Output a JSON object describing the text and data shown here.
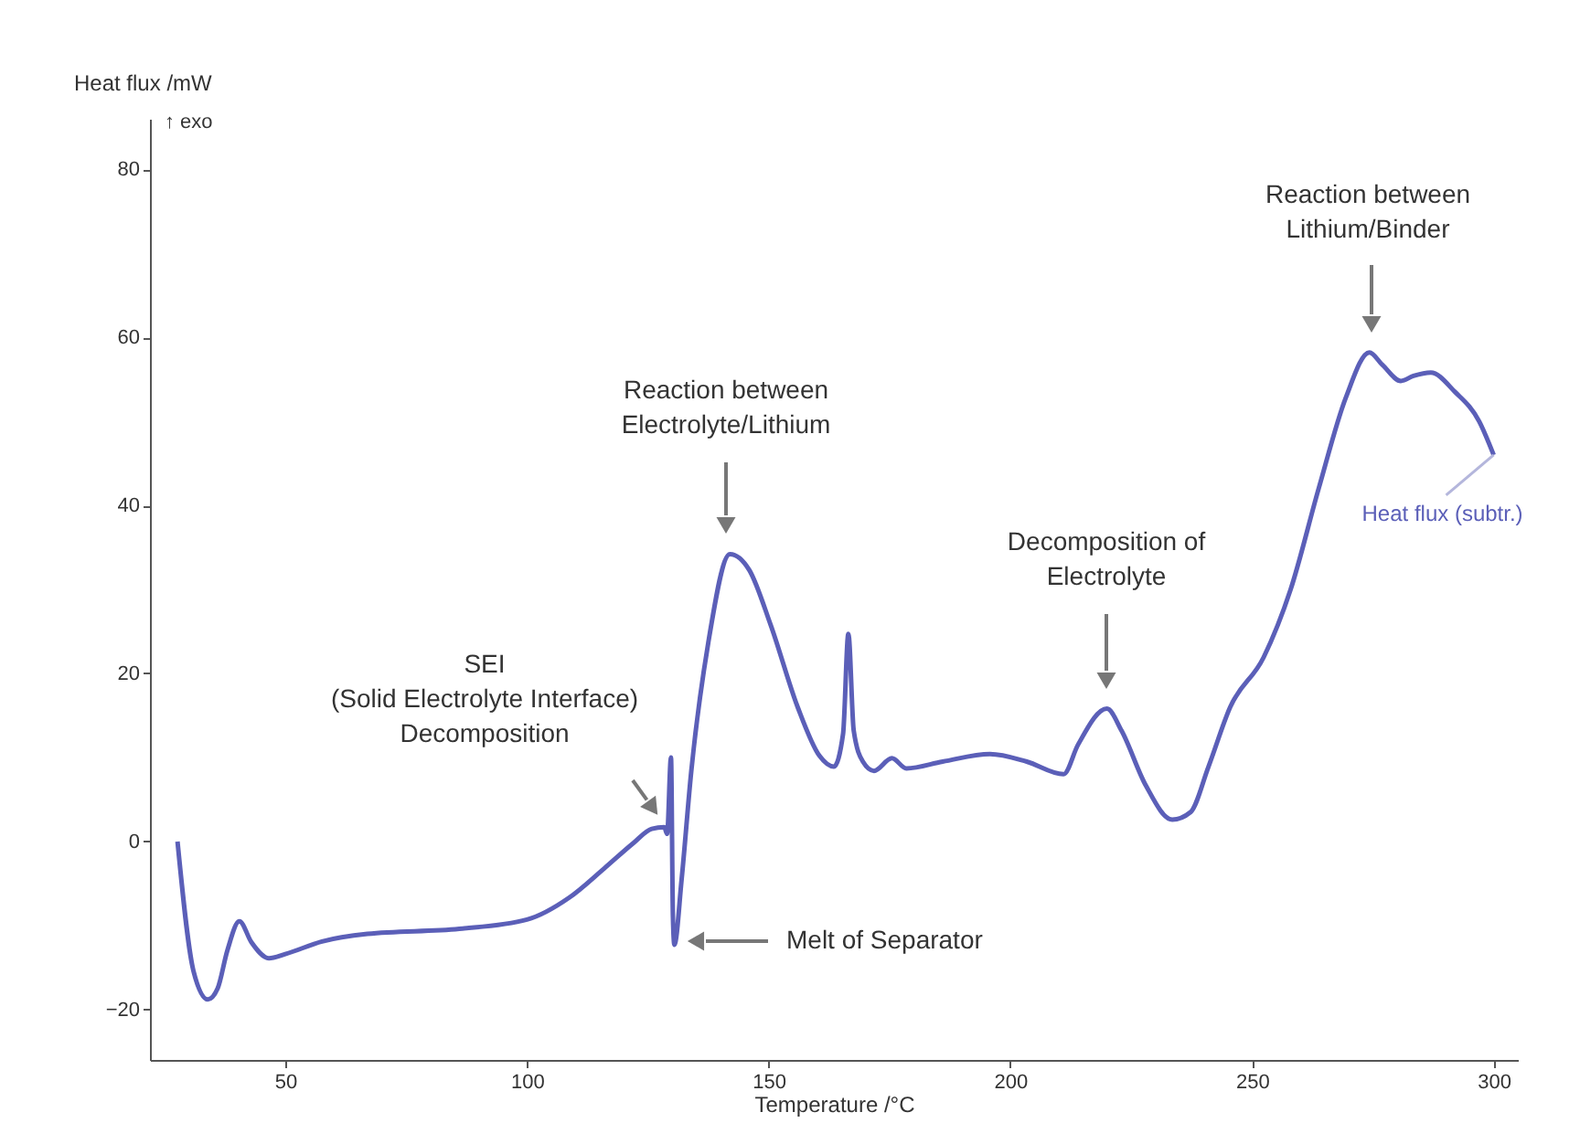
{
  "chart_data": {
    "type": "line",
    "xlabel": "Temperature /°C",
    "ylabel": "Heat flux /mW",
    "x": [
      27.7,
      31,
      34,
      36,
      38,
      40.5,
      43,
      46.6,
      50,
      57.6,
      67,
      86,
      100,
      108.7,
      116,
      122,
      125.8,
      128.4,
      129,
      129.8,
      130.2,
      130.5,
      132,
      134,
      137.5,
      142,
      146,
      150.4,
      156,
      160.5,
      163.5,
      165.4,
      166.5,
      167.6,
      169.5,
      171.8,
      175.5,
      178.5,
      186,
      195.8,
      203.4,
      211,
      214,
      220,
      223,
      228,
      233.5,
      237.3,
      241,
      245.5,
      252.4,
      258,
      263.8,
      269.4,
      274.3,
      277,
      280.8,
      283.4,
      287,
      292,
      297,
      300
    ],
    "series": [
      {
        "name": "Heat flux (subtr.)",
        "color": "#5b5fb8",
        "values": [
          0,
          -15.4,
          -18.8,
          -17.5,
          -13,
          -9.5,
          -12,
          -13.9,
          -13.4,
          -11.9,
          -11,
          -10.4,
          -9.3,
          -6.7,
          -3.2,
          -0.2,
          1.5,
          1.7,
          0.9,
          10,
          -9,
          -12.3,
          -4.5,
          8.4,
          23.6,
          34.2,
          32.3,
          25.8,
          16,
          10.2,
          8.9,
          12.8,
          24.7,
          13.2,
          9.5,
          8.4,
          9.9,
          8.7,
          9.5,
          10.4,
          9.5,
          8,
          11.5,
          15.8,
          13.2,
          6.7,
          2.6,
          3.5,
          8.9,
          16,
          21.9,
          30,
          42,
          52.8,
          58.2,
          56.7,
          54.8,
          55.4,
          55.8,
          53.5,
          50,
          46
        ]
      }
    ],
    "xlim": [
      22,
      305
    ],
    "ylim": [
      -26,
      86
    ],
    "xticks": [
      50,
      100,
      150,
      200,
      250,
      300
    ],
    "yticks": [
      -20,
      0,
      20,
      40,
      60,
      80
    ],
    "annotations": [
      "↑ exo",
      "SEI\n(Solid Electrolyte Interface)\nDecomposition",
      "Reaction between\nElectrolyte/Lithium",
      "Melt of Separator",
      "Decomposition of\nElectrolyte",
      "Reaction between\nLithium/Binder"
    ]
  }
}
